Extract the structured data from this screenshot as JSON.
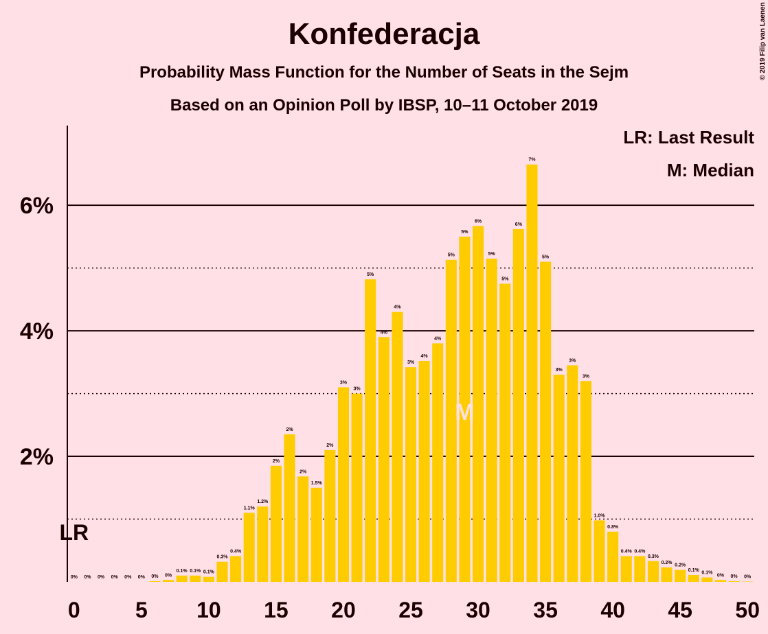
{
  "chart_data": {
    "type": "bar",
    "title": "Konfederacja",
    "subtitle": "Probability Mass Function for the Number of Seats in the Sejm",
    "subtitle2": "Based on an Opinion Poll by IBSP, 10–11 October 2019",
    "copyright": "© 2019 Filip van Laenen",
    "legend": [
      "LR: Last Result",
      "M: Median"
    ],
    "x": [
      0,
      1,
      2,
      3,
      4,
      5,
      6,
      7,
      8,
      9,
      10,
      11,
      12,
      13,
      14,
      15,
      16,
      17,
      18,
      19,
      20,
      21,
      22,
      23,
      24,
      25,
      26,
      27,
      28,
      29,
      30,
      31,
      32,
      33,
      34,
      35,
      36,
      37,
      38,
      39,
      40,
      41,
      42,
      43,
      44,
      45,
      46,
      47,
      48,
      49,
      50
    ],
    "values": [
      0,
      0,
      0,
      0,
      0,
      0,
      0.01,
      0.03,
      0.1,
      0.1,
      0.08,
      0.32,
      0.41,
      1.1,
      1.2,
      1.85,
      2.35,
      1.68,
      1.5,
      2.1,
      3.1,
      3.0,
      4.82,
      3.9,
      4.3,
      3.42,
      3.52,
      3.8,
      5.13,
      5.5,
      5.67,
      5.15,
      4.75,
      5.62,
      6.65,
      5.1,
      3.3,
      3.45,
      3.2,
      0.98,
      0.8,
      0.41,
      0.41,
      0.33,
      0.23,
      0.19,
      0.11,
      0.07,
      0.03,
      0.01,
      0.005
    ],
    "value_labels": [
      "0%",
      "0%",
      "0%",
      "0%",
      "0%",
      "0%",
      "0%",
      "0%",
      "0.1%",
      "0.1%",
      "0.1%",
      "0.3%",
      "0.4%",
      "1.1%",
      "1.2%",
      "2%",
      "2%",
      "2%",
      "1.5%",
      "2%",
      "3%",
      "3%",
      "5%",
      "4%",
      "4%",
      "3%",
      "4%",
      "4%",
      "5%",
      "5%",
      "6%",
      "5%",
      "5%",
      "6%",
      "7%",
      "5%",
      "3%",
      "3%",
      "3%",
      "1.0%",
      "0.8%",
      "0.4%",
      "0.4%",
      "0.3%",
      "0.2%",
      "0.2%",
      "0.1%",
      "0.1%",
      "0%",
      "0%",
      "0%"
    ],
    "color": "#ffcc00",
    "annotations": [
      {
        "label": "LR",
        "x": 0
      },
      {
        "label": "M",
        "x": 29
      }
    ],
    "xlim": [
      -0.5,
      50.5
    ],
    "xticks": [
      0,
      5,
      10,
      15,
      20,
      25,
      30,
      35,
      40,
      45,
      50
    ],
    "ylim": [
      0,
      7.27
    ],
    "yticks": [
      {
        "value": 2,
        "label": "2%"
      },
      {
        "value": 4,
        "label": "4%"
      },
      {
        "value": 6,
        "label": "6%"
      }
    ],
    "minor_yticks": [
      1,
      3,
      5
    ],
    "grid": true
  }
}
